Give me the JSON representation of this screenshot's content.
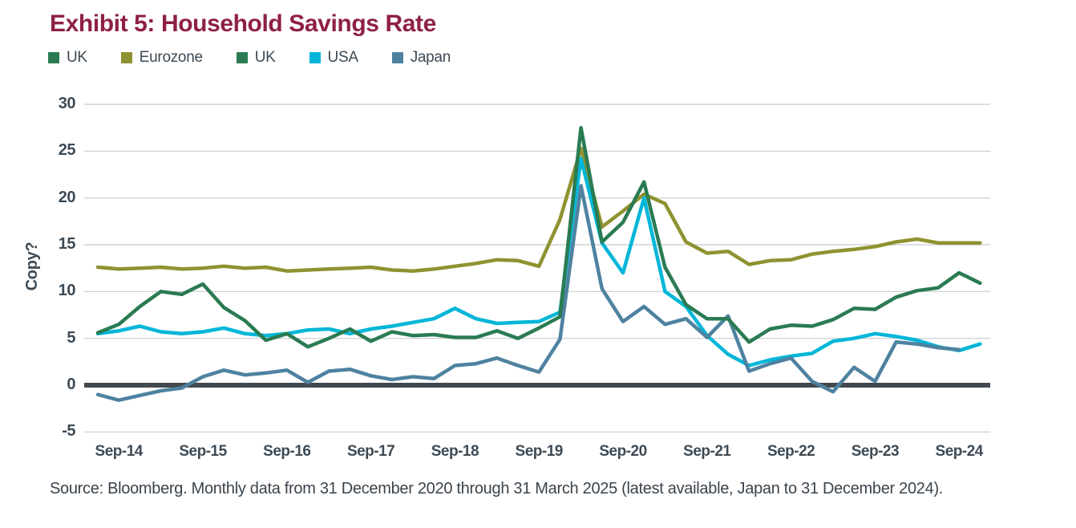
{
  "title": "Exhibit 5: Household Savings Rate",
  "legend": [
    {
      "label": "UK",
      "color": "#2a7b52"
    },
    {
      "label": "Eurozone",
      "color": "#8f9230"
    },
    {
      "label": "UK",
      "color": "#2a7b52"
    },
    {
      "label": "USA",
      "color": "#00b6d8"
    },
    {
      "label": "Japan",
      "color": "#4e82a0"
    }
  ],
  "source_note": "Source: Bloomberg. Monthly data from 31 December 2020 through 31 March 2025 (latest available, Japan to 31 December 2024).",
  "chart_data": {
    "type": "line",
    "title": "Exhibit 5: Household Savings Rate",
    "xlabel": "",
    "ylabel": "Copy?",
    "ylim": [
      -5,
      30
    ],
    "yticks": [
      30,
      25,
      20,
      15,
      10,
      5,
      0,
      -5
    ],
    "grid": "horizontal",
    "zero_line": true,
    "legend_position": "top",
    "x_labels": [
      "Sep-14",
      "Sep-15",
      "Sep-16",
      "Sep-17",
      "Sep-18",
      "Sep-19",
      "Sep-20",
      "Sep-21",
      "Sep-22",
      "Sep-23",
      "Sep-24"
    ],
    "frequency": "quarterly",
    "dates": [
      "Jun-14",
      "Sep-14",
      "Dec-14",
      "Mar-15",
      "Jun-15",
      "Sep-15",
      "Dec-15",
      "Mar-16",
      "Jun-16",
      "Sep-16",
      "Dec-16",
      "Mar-17",
      "Jun-17",
      "Sep-17",
      "Dec-17",
      "Mar-18",
      "Jun-18",
      "Sep-18",
      "Dec-18",
      "Mar-19",
      "Jun-19",
      "Sep-19",
      "Dec-19",
      "Mar-20",
      "Jun-20",
      "Sep-20",
      "Dec-20",
      "Mar-21",
      "Jun-21",
      "Sep-21",
      "Dec-21",
      "Mar-22",
      "Jun-22",
      "Sep-22",
      "Dec-22",
      "Mar-23",
      "Jun-23",
      "Sep-23",
      "Dec-23",
      "Mar-24",
      "Jun-24",
      "Sep-24",
      "Dec-24"
    ],
    "series": [
      {
        "name": "Eurozone",
        "color": "#8f9230",
        "values": [
          12.6,
          12.4,
          12.5,
          12.6,
          12.4,
          12.5,
          12.7,
          12.5,
          12.6,
          12.2,
          12.3,
          12.4,
          12.5,
          12.6,
          12.3,
          12.2,
          12.4,
          12.7,
          13.0,
          13.4,
          13.3,
          12.7,
          17.7,
          25.3,
          16.9,
          18.6,
          20.4,
          19.4,
          15.3,
          14.1,
          14.3,
          12.9,
          13.3,
          13.4,
          14.0,
          14.3,
          14.5,
          14.8,
          15.3,
          15.6,
          15.2,
          15.2,
          15.2
        ]
      },
      {
        "name": "USA",
        "color": "#00b6d8",
        "values": [
          5.5,
          5.8,
          6.3,
          5.7,
          5.5,
          5.7,
          6.1,
          5.5,
          5.3,
          5.5,
          5.9,
          6.0,
          5.5,
          6.0,
          6.3,
          6.7,
          7.1,
          8.2,
          7.1,
          6.6,
          6.7,
          6.8,
          7.8,
          24.2,
          15.2,
          12.0,
          20.0,
          10.0,
          8.4,
          5.3,
          3.3,
          2.1,
          2.7,
          3.1,
          3.4,
          4.7,
          5.0,
          5.5,
          5.2,
          4.8,
          4.1,
          3.7,
          4.4
        ]
      },
      {
        "name": "Japan",
        "color": "#4e82a0",
        "values": [
          -1.0,
          -1.6,
          -1.1,
          -0.6,
          -0.3,
          0.9,
          1.6,
          1.1,
          1.3,
          1.6,
          0.3,
          1.5,
          1.7,
          1.0,
          0.6,
          0.9,
          0.7,
          2.1,
          2.3,
          2.9,
          2.1,
          1.4,
          4.9,
          21.3,
          10.3,
          6.8,
          8.4,
          6.5,
          7.1,
          5.1,
          7.4,
          1.5,
          2.3,
          2.9,
          0.4,
          -0.7,
          1.9,
          0.4,
          4.6,
          4.4,
          4.0,
          3.8,
          null
        ]
      },
      {
        "name": "UK",
        "color": "#2a7b52",
        "values": [
          5.6,
          6.5,
          8.4,
          10.0,
          9.7,
          10.8,
          8.3,
          6.9,
          4.8,
          5.5,
          4.1,
          5.0,
          6.0,
          4.7,
          5.7,
          5.3,
          5.4,
          5.1,
          5.1,
          5.8,
          5.0,
          6.1,
          7.3,
          27.5,
          15.3,
          17.4,
          21.7,
          12.6,
          8.6,
          7.1,
          7.1,
          4.6,
          6.0,
          6.4,
          6.3,
          7.0,
          8.2,
          8.1,
          9.4,
          10.1,
          10.4,
          12.0,
          10.9
        ]
      }
    ]
  }
}
